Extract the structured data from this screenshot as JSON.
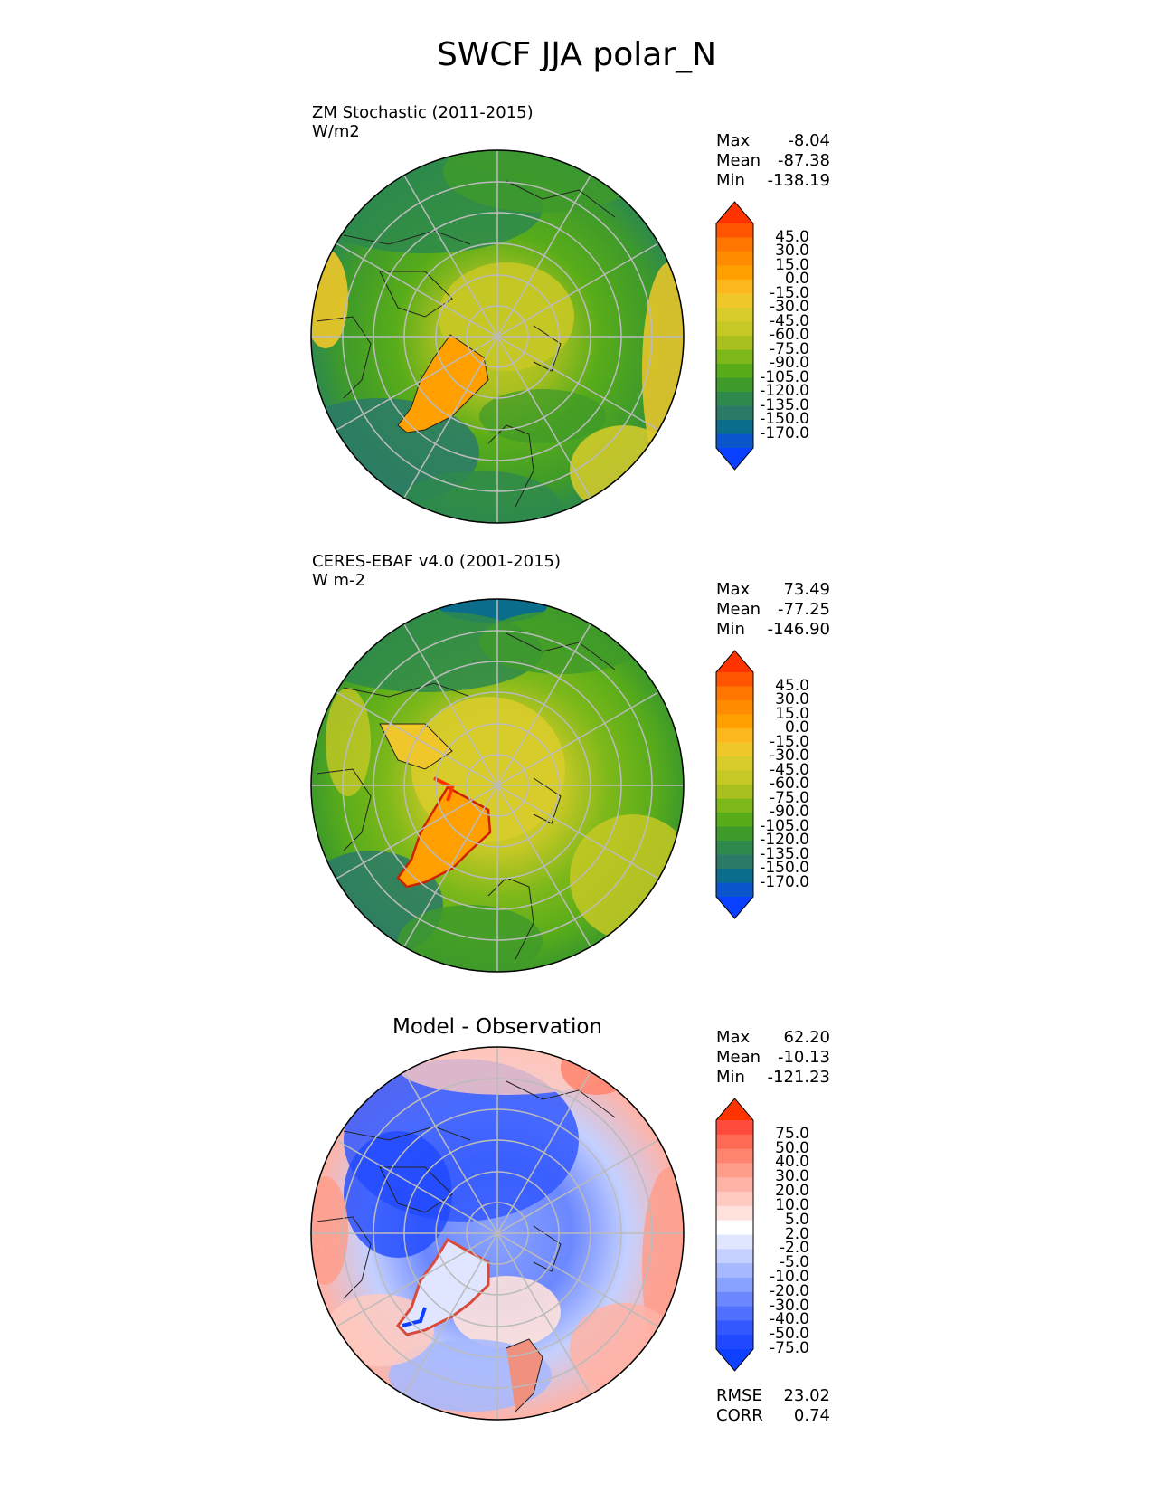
{
  "title": "SWCF JJA polar_N",
  "panels": [
    {
      "name": "test",
      "title_line1": "ZM Stochastic (2011-2015)",
      "title_line2": "W/m2",
      "stats": {
        "max_label": "Max",
        "max": "-8.04",
        "mean_label": "Mean",
        "mean": "-87.38",
        "min_label": "Min",
        "min": "-138.19"
      }
    },
    {
      "name": "reference",
      "title_line1": "CERES-EBAF v4.0 (2001-2015)",
      "title_line2": "W m-2",
      "stats": {
        "max_label": "Max",
        "max": "73.49",
        "mean_label": "Mean",
        "mean": "-77.25",
        "min_label": "Min",
        "min": "-146.90"
      }
    },
    {
      "name": "difference",
      "title": "Model - Observation",
      "stats": {
        "max_label": "Max",
        "max": "62.20",
        "mean_label": "Mean",
        "mean": "-10.13",
        "min_label": "Min",
        "min": "-121.23"
      },
      "rmse_label": "RMSE",
      "rmse": "23.02",
      "corr_label": "CORR",
      "corr": "0.74"
    }
  ],
  "colorbar_main": {
    "ticks": [
      "45.0",
      "30.0",
      "15.0",
      "0.0",
      "-15.0",
      "-30.0",
      "-45.0",
      "-60.0",
      "-75.0",
      "-90.0",
      "-105.0",
      "-120.0",
      "-135.0",
      "-150.0",
      "-170.0"
    ],
    "colors_top_to_bottom": [
      "#ff3300",
      "#ff5500",
      "#ff7700",
      "#ff8c00",
      "#ffa000",
      "#fdb820",
      "#f0c72a",
      "#d8cc2a",
      "#c6c825",
      "#a9c020",
      "#7db81a",
      "#58ac1a",
      "#3e9a2a",
      "#2e8a4c",
      "#2a7a68",
      "#0b6d8c",
      "#0a55cc",
      "#0a40ff"
    ]
  },
  "colorbar_diff": {
    "ticks": [
      "75.0",
      "50.0",
      "40.0",
      "30.0",
      "20.0",
      "10.0",
      "5.0",
      "2.0",
      "-2.0",
      "-5.0",
      "-10.0",
      "-20.0",
      "-30.0",
      "-40.0",
      "-50.0",
      "-75.0"
    ],
    "colors_top_to_bottom": [
      "#ff3300",
      "#ff4b3c",
      "#ff6a55",
      "#ff846f",
      "#ff9d8b",
      "#ffb3a6",
      "#ffcac0",
      "#ffe2dc",
      "#ffffff",
      "#e0e6ff",
      "#c4d0ff",
      "#a6b8ff",
      "#8aa2ff",
      "#6c88ff",
      "#5070ff",
      "#3358ff",
      "#1f48ff",
      "#1040ff"
    ]
  },
  "map_colors": {
    "ocean_dark": "#2a7a68",
    "midlat_green": "#58ac1a",
    "arctic_yellowgreen": "#b4c423",
    "greenland_orange": "#ffa000",
    "diff_blue": "#4a6cf0",
    "diff_red": "#f59a8e"
  },
  "icons": {
    "triangle_top": "up-triangle-extension",
    "triangle_bottom": "down-triangle-extension"
  }
}
